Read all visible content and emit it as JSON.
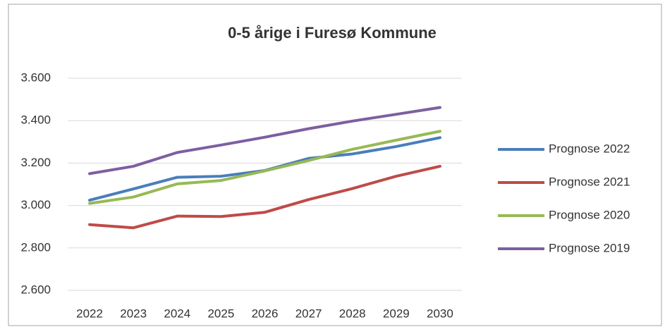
{
  "chart_data": {
    "type": "line",
    "title": "0-5 årige i Furesø Kommune",
    "categories": [
      "2022",
      "2023",
      "2024",
      "2025",
      "2026",
      "2027",
      "2028",
      "2029",
      "2030"
    ],
    "series": [
      {
        "name": "Prognose 2022",
        "color": "#4a7ebb",
        "values": [
          3025,
          3078,
          3133,
          3138,
          3165,
          3222,
          3243,
          3278,
          3320
        ]
      },
      {
        "name": "Prognose 2021",
        "color": "#be4b48",
        "values": [
          2910,
          2895,
          2950,
          2948,
          2968,
          3028,
          3080,
          3138,
          3185
        ]
      },
      {
        "name": "Prognose 2020",
        "color": "#98b954",
        "values": [
          3010,
          3040,
          3102,
          3118,
          3163,
          3212,
          3265,
          3308,
          3350
        ]
      },
      {
        "name": "Prognose 2019",
        "color": "#7d5fa0",
        "values": [
          3150,
          3185,
          3250,
          3285,
          3322,
          3362,
          3398,
          3430,
          3462
        ]
      }
    ],
    "ylim": [
      2600,
      3600
    ],
    "yticks": [
      {
        "value": 2600,
        "label": "2.600"
      },
      {
        "value": 2800,
        "label": "2.800"
      },
      {
        "value": 3000,
        "label": "3.000"
      },
      {
        "value": 3200,
        "label": "3.200"
      },
      {
        "value": 3400,
        "label": "3.400"
      },
      {
        "value": 3600,
        "label": "3.600"
      }
    ],
    "grid": true,
    "legend": "right"
  }
}
